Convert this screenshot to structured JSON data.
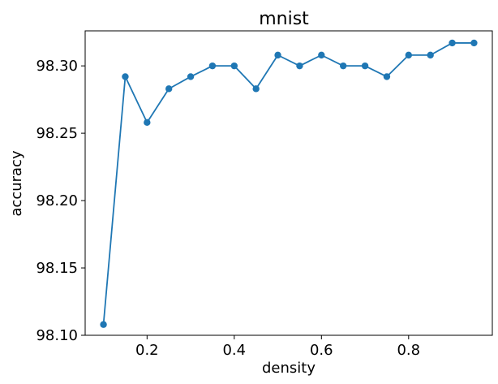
{
  "chart_data": {
    "type": "line",
    "title": "mnist",
    "xlabel": "density",
    "ylabel": "accuracy",
    "xlim": [
      0.058,
      0.992
    ],
    "ylim": [
      98.1,
      98.326
    ],
    "grid": false,
    "x_ticks": [
      0.2,
      0.4,
      0.6,
      0.8
    ],
    "x_tick_labels": [
      "0.2",
      "0.4",
      "0.6",
      "0.8"
    ],
    "y_ticks": [
      98.1,
      98.15,
      98.2,
      98.25,
      98.3
    ],
    "y_tick_labels": [
      "98.10",
      "98.15",
      "98.20",
      "98.25",
      "98.30"
    ],
    "series": [
      {
        "color": "#1f77b4",
        "marker": "circle",
        "x": [
          0.1,
          0.15,
          0.2,
          0.25,
          0.3,
          0.35,
          0.4,
          0.45,
          0.5,
          0.55,
          0.6,
          0.65,
          0.7,
          0.75,
          0.8,
          0.85,
          0.9,
          0.95
        ],
        "y": [
          98.108,
          98.292,
          98.258,
          98.283,
          98.292,
          98.3,
          98.3,
          98.283,
          98.308,
          98.3,
          98.308,
          98.3,
          98.3,
          98.292,
          98.308,
          98.308,
          98.317,
          98.317
        ]
      }
    ]
  }
}
